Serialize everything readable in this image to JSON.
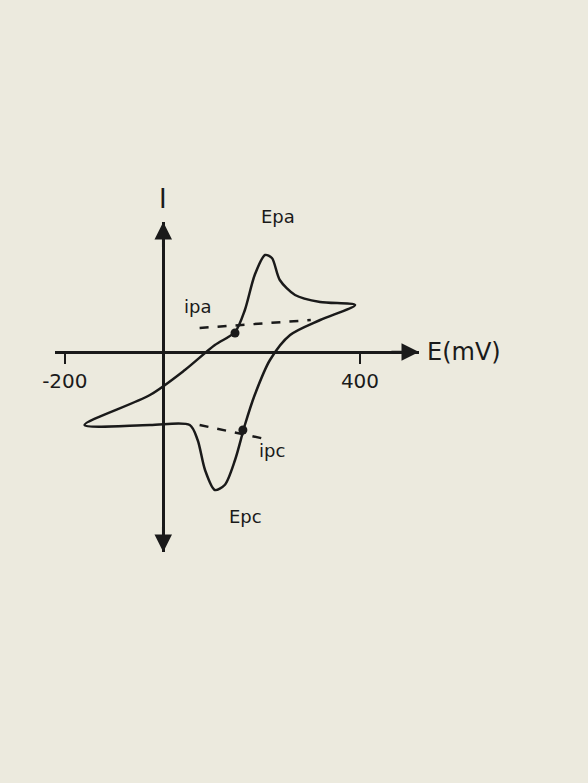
{
  "chart_data": {
    "type": "line",
    "x_label": "E(mV)",
    "y_label": "I",
    "xlim": [
      -220,
      520
    ],
    "ylim": [
      -20,
      13
    ],
    "xticks": [
      -200,
      400
    ],
    "yticks": [],
    "tick_labels": "x",
    "grid": false,
    "series": [
      {
        "color": "#1a1a1a",
        "line_style": "solid",
        "x": [
          -160,
          -27,
          44,
          105,
          146,
          166,
          186,
          207,
          221,
          237,
          268,
          319,
          390,
          319,
          258,
          217,
          186,
          166,
          146,
          125,
          105,
          85,
          70,
          54,
          -27,
          -160
        ],
        "values": [
          -7.3,
          -4.3,
          -1.8,
          0.7,
          2.0,
          4.2,
          7.7,
          9.7,
          9.4,
          7.2,
          5.7,
          5.0,
          4.7,
          3.2,
          1.7,
          -0.8,
          -4.3,
          -7.3,
          -10.8,
          -13.3,
          -13.8,
          -11.8,
          -8.8,
          -7.3,
          -7.3,
          -7.3
        ]
      },
      {
        "color": "#1a1a1a",
        "line_style": "dashed",
        "x": [
          74,
          300
        ],
        "values": [
          2.4,
          3.2
        ]
      },
      {
        "color": "#1a1a1a",
        "line_style": "dashed",
        "x": [
          74,
          217
        ],
        "values": [
          -7.3,
          -8.8
        ]
      },
      {
        "color": "#1a1a1a",
        "line_style": "none",
        "marker": "circle",
        "x": [
          146,
          162
        ],
        "values": [
          1.9,
          -7.8
        ]
      }
    ],
    "annotations": [
      {
        "text": "Epa",
        "x": 221,
        "y": 9.7
      },
      {
        "text": "ipa",
        "x": 146,
        "y": 1.9
      },
      {
        "text": "Epc",
        "x": 85,
        "y": -13.8
      },
      {
        "text": "ipc",
        "x": 162,
        "y": -7.8
      }
    ]
  }
}
